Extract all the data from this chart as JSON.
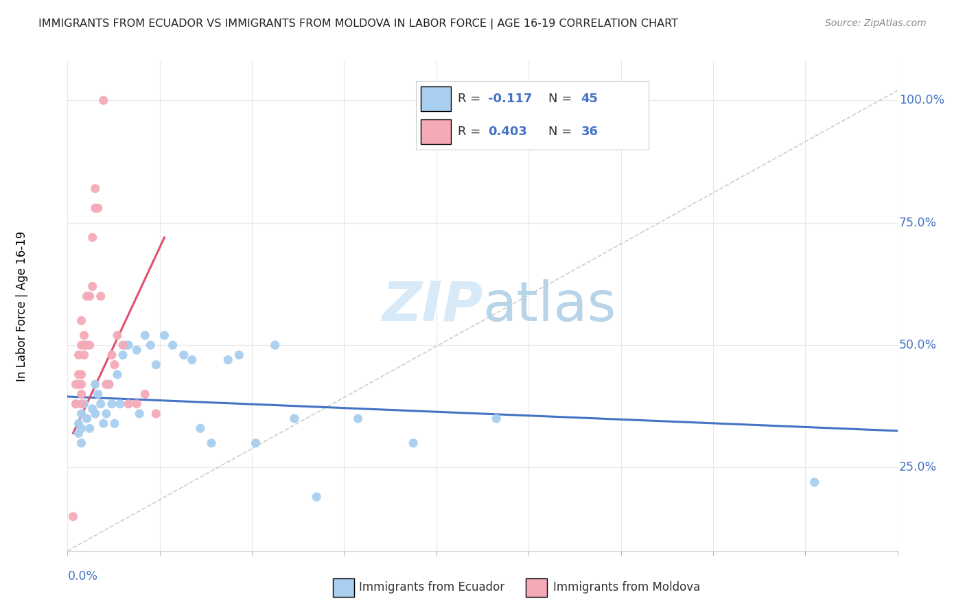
{
  "title": "IMMIGRANTS FROM ECUADOR VS IMMIGRANTS FROM MOLDOVA IN LABOR FORCE | AGE 16-19 CORRELATION CHART",
  "source": "Source: ZipAtlas.com",
  "ylabel": "In Labor Force | Age 16-19",
  "xlim": [
    0.0,
    0.3
  ],
  "ylim": [
    0.08,
    1.08
  ],
  "yticks": [
    0.25,
    0.5,
    0.75,
    1.0
  ],
  "ytick_labels": [
    "25.0%",
    "50.0%",
    "75.0%",
    "100.0%"
  ],
  "xtick_left_label": "0.0%",
  "legend_r1": "-0.117",
  "legend_n1": "45",
  "legend_r2": "0.403",
  "legend_n2": "36",
  "ecuador_color": "#a8cff0",
  "moldova_color": "#f5aab8",
  "ecuador_line_color": "#4472c4",
  "moldova_line_color": "#e05070",
  "ref_line_color": "#c0c0c0",
  "watermark_color": "#d8eaf8",
  "grid_color": "#e8e8e8",
  "background_color": "#ffffff",
  "ecuador_scatter_x": [
    0.003,
    0.004,
    0.004,
    0.005,
    0.005,
    0.005,
    0.006,
    0.007,
    0.008,
    0.009,
    0.01,
    0.01,
    0.011,
    0.012,
    0.013,
    0.014,
    0.015,
    0.016,
    0.017,
    0.018,
    0.019,
    0.02,
    0.021,
    0.022,
    0.025,
    0.026,
    0.028,
    0.03,
    0.032,
    0.035,
    0.038,
    0.042,
    0.045,
    0.048,
    0.052,
    0.058,
    0.062,
    0.068,
    0.075,
    0.082,
    0.09,
    0.105,
    0.125,
    0.155,
    0.27
  ],
  "ecuador_scatter_y": [
    0.38,
    0.34,
    0.32,
    0.36,
    0.33,
    0.3,
    0.38,
    0.35,
    0.33,
    0.37,
    0.42,
    0.36,
    0.4,
    0.38,
    0.34,
    0.36,
    0.42,
    0.38,
    0.34,
    0.44,
    0.38,
    0.48,
    0.5,
    0.5,
    0.49,
    0.36,
    0.52,
    0.5,
    0.46,
    0.52,
    0.5,
    0.48,
    0.47,
    0.33,
    0.3,
    0.47,
    0.48,
    0.3,
    0.5,
    0.35,
    0.19,
    0.35,
    0.3,
    0.35,
    0.22
  ],
  "moldova_scatter_x": [
    0.002,
    0.003,
    0.003,
    0.004,
    0.004,
    0.004,
    0.005,
    0.005,
    0.005,
    0.005,
    0.005,
    0.005,
    0.006,
    0.006,
    0.006,
    0.007,
    0.007,
    0.008,
    0.008,
    0.009,
    0.009,
    0.01,
    0.01,
    0.011,
    0.012,
    0.013,
    0.014,
    0.015,
    0.016,
    0.017,
    0.018,
    0.02,
    0.022,
    0.025,
    0.028,
    0.032
  ],
  "moldova_scatter_y": [
    0.15,
    0.38,
    0.42,
    0.42,
    0.44,
    0.48,
    0.38,
    0.4,
    0.42,
    0.44,
    0.5,
    0.55,
    0.48,
    0.5,
    0.52,
    0.5,
    0.6,
    0.5,
    0.6,
    0.62,
    0.72,
    0.78,
    0.82,
    0.78,
    0.6,
    1.0,
    0.42,
    0.42,
    0.48,
    0.46,
    0.52,
    0.5,
    0.38,
    0.38,
    0.4,
    0.36
  ],
  "ecuador_trend_x": [
    0.0,
    0.3
  ],
  "ecuador_trend_y": [
    0.395,
    0.325
  ],
  "moldova_trend_x": [
    0.002,
    0.035
  ],
  "moldova_trend_y": [
    0.32,
    0.72
  ],
  "ref_line_x": [
    0.0,
    0.3
  ],
  "ref_line_y": [
    0.08,
    1.02
  ]
}
